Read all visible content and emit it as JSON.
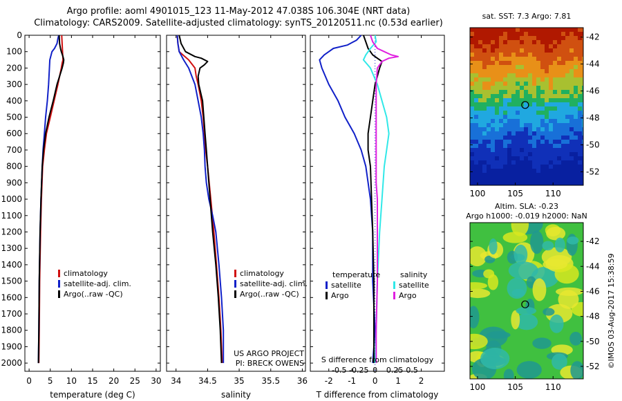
{
  "header": {
    "line1": "Argo profile: aoml 4901015_123 11-May-2012 47.038S 106.304E (NRT data)",
    "line2": "Climatology: CARS2009. Satellite-adjusted climatology: synTS_20120511.nc (0.53d earlier)"
  },
  "colors": {
    "climatology": "#d01010",
    "satellite": "#1020c8",
    "argo": "#000000",
    "salinity_satellite": "#30e8e8",
    "salinity_argo": "#e020e0"
  },
  "depth_ticks": [
    0,
    100,
    200,
    300,
    400,
    500,
    600,
    700,
    800,
    900,
    1000,
    1100,
    1200,
    1300,
    1400,
    1500,
    1600,
    1700,
    1800,
    1900,
    2000
  ],
  "chart_data": [
    {
      "type": "line",
      "name": "temperature",
      "xlabel": "temperature (deg C)",
      "xlim": [
        -1,
        31
      ],
      "ylim": [
        2050,
        0
      ],
      "xticks": [
        0,
        5,
        10,
        15,
        20,
        25,
        30
      ],
      "legend": [
        "climatology",
        "satellite-adj. clim.",
        "Argo(..raw -QC)"
      ],
      "series": [
        {
          "name": "climatology",
          "color": "#d01010",
          "depth": [
            0,
            50,
            100,
            150,
            170,
            200,
            300,
            400,
            500,
            600,
            700,
            800,
            1000,
            1200,
            1500,
            1800,
            2000
          ],
          "values": [
            7.7,
            7.8,
            7.9,
            8.0,
            7.8,
            7.6,
            6.8,
            5.9,
            5.0,
            4.1,
            3.6,
            3.2,
            2.9,
            2.7,
            2.5,
            2.4,
            2.3
          ]
        },
        {
          "name": "satellite-adj. clim.",
          "color": "#1020c8",
          "depth": [
            0,
            20,
            50,
            80,
            100,
            150,
            200,
            300,
            400,
            500,
            600,
            700,
            800,
            1000,
            1200,
            1500,
            1800,
            2000
          ],
          "values": [
            7.0,
            6.8,
            6.6,
            6.0,
            5.4,
            4.9,
            4.8,
            4.6,
            4.3,
            3.9,
            3.6,
            3.3,
            3.1,
            2.8,
            2.6,
            2.4,
            2.3,
            2.2
          ]
        },
        {
          "name": "Argo(..raw -QC)",
          "color": "#000000",
          "depth": [
            0,
            50,
            80,
            100,
            130,
            150,
            170,
            200,
            250,
            300,
            400,
            500,
            600,
            700,
            800,
            1000,
            1200,
            1500,
            1800,
            2000
          ],
          "values": [
            7.1,
            7.2,
            7.4,
            7.6,
            8.0,
            8.2,
            8.1,
            7.8,
            7.2,
            6.6,
            5.7,
            4.7,
            3.9,
            3.4,
            3.1,
            2.8,
            2.6,
            2.4,
            2.3,
            2.2
          ]
        }
      ]
    },
    {
      "type": "line",
      "name": "salinity",
      "xlabel": "salinity",
      "xlim": [
        33.85,
        36.05
      ],
      "ylim": [
        2050,
        0
      ],
      "xticks": [
        34,
        34.5,
        35,
        35.5,
        36
      ],
      "legend": [
        "climatology",
        "satellite-adj. clim.",
        "Argo(..raw -QC)"
      ],
      "annotations": [
        "US ARGO PROJECT",
        "PI: BRECK OWENS"
      ],
      "series": [
        {
          "name": "climatology",
          "color": "#d01010",
          "depth": [
            0,
            50,
            100,
            150,
            200,
            250,
            300,
            400,
            500,
            600,
            700,
            800,
            1000,
            1200,
            1400,
            1600,
            1800,
            2000
          ],
          "values": [
            34.02,
            34.03,
            34.05,
            34.2,
            34.3,
            34.32,
            34.35,
            34.4,
            34.43,
            34.45,
            34.47,
            34.5,
            34.55,
            34.6,
            34.64,
            34.68,
            34.71,
            34.73
          ]
        },
        {
          "name": "satellite-adj. clim.",
          "color": "#1020c8",
          "depth": [
            0,
            50,
            100,
            150,
            200,
            300,
            400,
            500,
            600,
            700,
            800,
            900,
            1000,
            1100,
            1200,
            1400,
            1600,
            1800,
            2000
          ],
          "values": [
            34.02,
            34.03,
            34.05,
            34.12,
            34.2,
            34.3,
            34.35,
            34.4,
            34.43,
            34.45,
            34.46,
            34.48,
            34.52,
            34.58,
            34.63,
            34.68,
            34.72,
            34.75,
            34.75
          ]
        },
        {
          "name": "Argo(..raw -QC)",
          "color": "#000000",
          "depth": [
            0,
            50,
            100,
            130,
            140,
            160,
            180,
            200,
            250,
            300,
            400,
            500,
            600,
            700,
            800,
            1000,
            1200,
            1400,
            1600,
            1800,
            2000
          ],
          "values": [
            34.05,
            34.08,
            34.15,
            34.3,
            34.4,
            34.5,
            34.45,
            34.38,
            34.35,
            34.36,
            34.42,
            34.44,
            34.46,
            34.48,
            34.5,
            34.54,
            34.58,
            34.63,
            34.67,
            34.7,
            34.72
          ]
        }
      ]
    },
    {
      "type": "line",
      "name": "difference",
      "xlabel": "T difference from climatology",
      "x2label": "S difference from climatology",
      "xlim": [
        -2.8,
        3.0
      ],
      "ylim": [
        2050,
        0
      ],
      "xticks": [
        -2,
        -1,
        0,
        1,
        2
      ],
      "x2ticks": [
        "-0.5",
        "-0.25",
        "0",
        "0.25",
        "0.5"
      ],
      "legend_groups": [
        {
          "title": "temperature",
          "items": [
            "satellite",
            "Argo"
          ]
        },
        {
          "title": "salinity",
          "items": [
            "satellite",
            "Argo"
          ]
        }
      ],
      "series": [
        {
          "name": "temperature satellite",
          "color": "#1020c8",
          "depth": [
            0,
            30,
            60,
            80,
            100,
            120,
            150,
            200,
            300,
            400,
            500,
            600,
            700,
            800,
            1000,
            1200,
            1500,
            1800,
            2000
          ],
          "values": [
            -0.6,
            -0.8,
            -1.2,
            -1.8,
            -2.0,
            -2.2,
            -2.4,
            -2.3,
            -2.0,
            -1.6,
            -1.3,
            -0.9,
            -0.6,
            -0.4,
            -0.2,
            -0.1,
            -0.1,
            0.0,
            -0.1
          ]
        },
        {
          "name": "temperature Argo",
          "color": "#000000",
          "depth": [
            0,
            40,
            80,
            120,
            140,
            160,
            200,
            300,
            400,
            500,
            600,
            700,
            800,
            1000,
            1200,
            1500,
            1800,
            2000
          ],
          "values": [
            -0.5,
            -0.4,
            -0.3,
            -0.1,
            0.1,
            0.3,
            0.2,
            0.0,
            -0.1,
            -0.2,
            -0.3,
            -0.3,
            -0.2,
            -0.15,
            -0.1,
            -0.05,
            -0.05,
            -0.05
          ]
        },
        {
          "name": "salinity satellite",
          "color": "#30e8e8",
          "depth": [
            0,
            40,
            80,
            120,
            150,
            200,
            300,
            400,
            500,
            600,
            700,
            800,
            1000,
            1200,
            1500,
            1800,
            2000
          ],
          "values": [
            0.0,
            0.05,
            -0.2,
            -0.4,
            -0.5,
            -0.2,
            0.1,
            0.3,
            0.5,
            0.6,
            0.5,
            0.4,
            0.3,
            0.2,
            0.1,
            0.05,
            0.0
          ]
        },
        {
          "name": "salinity Argo",
          "color": "#e020e0",
          "depth": [
            0,
            40,
            80,
            100,
            120,
            130,
            140,
            160,
            200,
            300,
            500,
            700,
            900,
            1000,
            1200,
            1500,
            1800,
            2000
          ],
          "values": [
            -0.2,
            -0.1,
            0.1,
            0.4,
            0.7,
            1.0,
            0.6,
            0.3,
            0.1,
            0.05,
            0.05,
            0.05,
            0.05,
            0.1,
            0.1,
            0.1,
            0.05,
            0.05
          ]
        }
      ]
    },
    {
      "type": "heatmap",
      "name": "sst",
      "title": "sat. SST: 7.3 Argo: 7.81",
      "xlim": [
        99,
        114
      ],
      "ylim": [
        -53,
        -41.3
      ],
      "xticks": [
        100,
        105,
        110
      ],
      "yticks": [
        -42,
        -44,
        -46,
        -48,
        -50,
        -52
      ],
      "marker": {
        "lon": 106.304,
        "lat": -47.038
      },
      "bands": [
        {
          "lat": -42,
          "color": "#b01800"
        },
        {
          "lat": -43.5,
          "color": "#d05010"
        },
        {
          "lat": -45,
          "color": "#e89018"
        },
        {
          "lat": -46,
          "color": "#a8c030"
        },
        {
          "lat": -47,
          "color": "#20b060"
        },
        {
          "lat": -48.2,
          "color": "#20a8e0"
        },
        {
          "lat": -49.5,
          "color": "#1870d8"
        },
        {
          "lat": -51,
          "color": "#1030b8"
        },
        {
          "lat": -53,
          "color": "#0820a0"
        }
      ]
    },
    {
      "type": "heatmap",
      "name": "sla",
      "title": "Altim. SLA: -0.23",
      "subtitle": "Argo h1000: -0.019 h2000: NaN",
      "xlim": [
        99,
        114
      ],
      "ylim": [
        -53,
        -40.5
      ],
      "xticks": [
        100,
        105,
        110
      ],
      "yticks": [
        -42,
        -44,
        -46,
        -48,
        -50,
        -52
      ],
      "marker": {
        "lon": 106.304,
        "lat": -47.038
      },
      "base_color": "#40c040",
      "blob_colors": [
        "#d8e820",
        "#30b8a8",
        "#e8e830",
        "#209890"
      ]
    }
  ],
  "footer": {
    "credit": "©IMOS 03-Aug-2017 15:38:59"
  }
}
